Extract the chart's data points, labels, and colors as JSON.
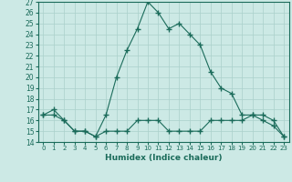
{
  "xlabel": "Humidex (Indice chaleur)",
  "x": [
    0,
    1,
    2,
    3,
    4,
    5,
    6,
    7,
    8,
    9,
    10,
    11,
    12,
    13,
    14,
    15,
    16,
    17,
    18,
    19,
    20,
    21,
    22,
    23
  ],
  "line1_y": [
    16.5,
    17.0,
    16.0,
    15.0,
    15.0,
    14.5,
    16.5,
    20.0,
    22.5,
    24.5,
    27.0,
    26.0,
    24.5,
    25.0,
    24.0,
    23.0,
    20.5,
    19.0,
    18.5,
    16.5,
    16.5,
    16.0,
    15.5,
    14.5
  ],
  "line2_y": [
    16.5,
    16.5,
    16.0,
    15.0,
    15.0,
    14.5,
    15.0,
    15.0,
    15.0,
    16.0,
    16.0,
    16.0,
    15.0,
    15.0,
    15.0,
    15.0,
    16.0,
    16.0,
    16.0,
    16.0,
    16.5,
    16.5,
    16.0,
    14.5
  ],
  "line_color": "#1a6b5a",
  "bg_color": "#cce9e5",
  "grid_color": "#aad0cb",
  "ylim": [
    14,
    27
  ],
  "xlim": [
    -0.5,
    23.5
  ],
  "yticks": [
    14,
    15,
    16,
    17,
    18,
    19,
    20,
    21,
    22,
    23,
    24,
    25,
    26,
    27
  ],
  "xticks": [
    0,
    1,
    2,
    3,
    4,
    5,
    6,
    7,
    8,
    9,
    10,
    11,
    12,
    13,
    14,
    15,
    16,
    17,
    18,
    19,
    20,
    21,
    22,
    23
  ]
}
